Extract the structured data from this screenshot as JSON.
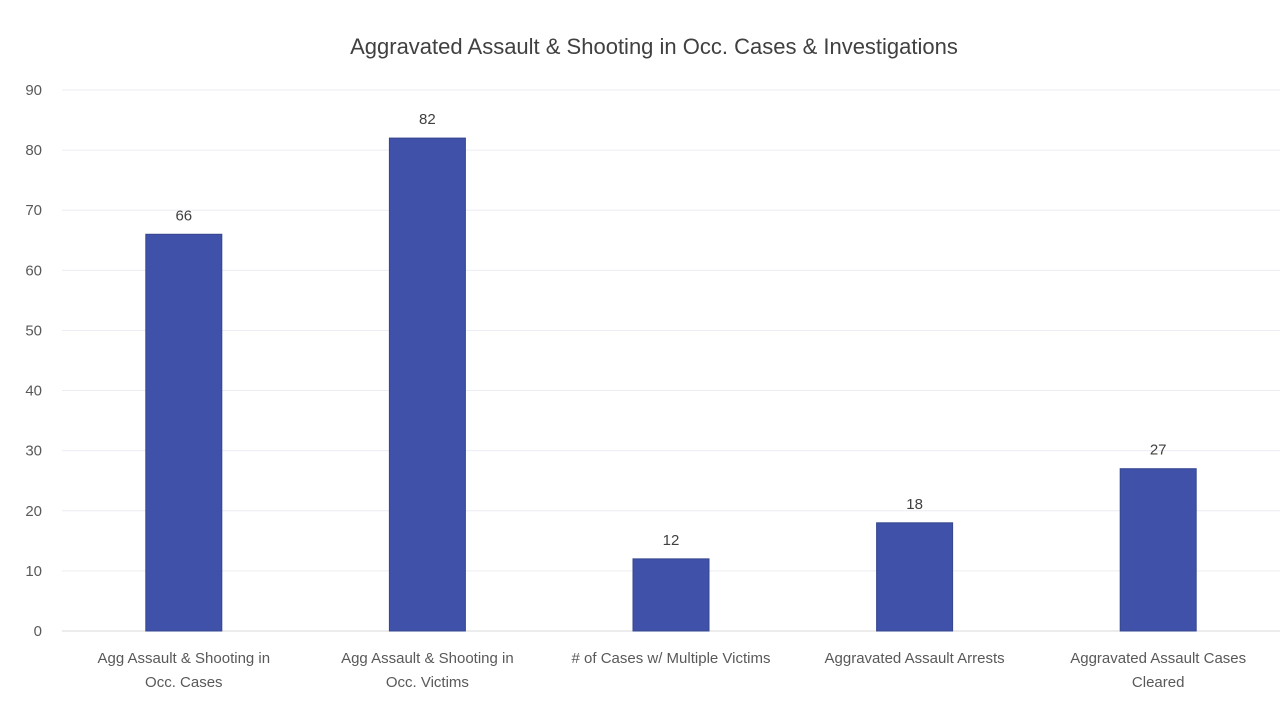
{
  "chart_data": {
    "type": "bar",
    "title": "Aggravated Assault & Shooting in Occ. Cases & Investigations",
    "categories": [
      [
        "Agg Assault & Shooting in",
        "Occ. Cases"
      ],
      [
        "Agg Assault & Shooting in",
        "Occ. Victims"
      ],
      [
        "# of Cases w/ Multiple Victims"
      ],
      [
        "Aggravated Assault Arrests"
      ],
      [
        "Aggravated Assault Cases",
        "Cleared"
      ]
    ],
    "values": [
      66,
      82,
      12,
      18,
      27
    ],
    "data_labels": [
      "66",
      "82",
      "12",
      "18",
      "27"
    ],
    "xlabel": "",
    "ylabel": "",
    "ylim": [
      0,
      90
    ],
    "yticks": [
      0,
      10,
      20,
      30,
      40,
      50,
      60,
      70,
      80,
      90
    ],
    "ytick_labels": [
      "0",
      "10",
      "20",
      "30",
      "40",
      "50",
      "60",
      "70",
      "80",
      "90"
    ],
    "grid": true,
    "legend": "none",
    "colors": {
      "bar": "#3f51a8",
      "bar_edge": "#36478f",
      "gridline": "#ececf4",
      "text": "#595959",
      "title": "#404040"
    }
  }
}
